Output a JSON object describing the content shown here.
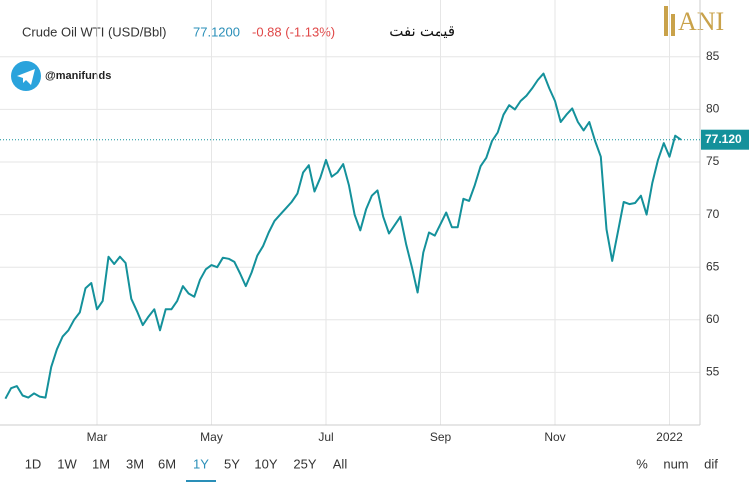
{
  "chart_data": {
    "type": "line",
    "title": "Crude Oil WTI (USD/Bbl)",
    "price": "77.1200",
    "change": "-0.88 (-1.13%)",
    "annotation": "قیمت نفت",
    "watermark": "@manifunds",
    "logo": "ANI",
    "categories": [
      null,
      null,
      null,
      null,
      null,
      null,
      null,
      null,
      null,
      null,
      null,
      null,
      null,
      null,
      null,
      null,
      "Mar",
      null,
      null,
      null,
      null,
      null,
      null,
      null,
      null,
      null,
      null,
      null,
      null,
      null,
      null,
      null,
      null,
      null,
      null,
      null,
      "May",
      null,
      null,
      null,
      null,
      null,
      null,
      null,
      null,
      null,
      null,
      null,
      null,
      null,
      null,
      null,
      null,
      null,
      null,
      null,
      "Jul",
      null,
      null,
      null,
      null,
      null,
      null,
      null,
      null,
      null,
      null,
      null,
      null,
      null,
      null,
      null,
      null,
      null,
      null,
      null,
      "Sep",
      null,
      null,
      null,
      null,
      null,
      null,
      null,
      null,
      null,
      null,
      null,
      null,
      null,
      null,
      null,
      null,
      null,
      null,
      null,
      "Nov",
      null,
      null,
      null,
      null,
      null,
      null,
      null,
      null,
      null,
      null,
      null,
      null,
      null,
      null,
      null,
      null,
      null,
      null,
      null,
      "2022",
      null,
      null
    ],
    "series": [
      {
        "name": "Crude Oil WTI (USD/Bbl)",
        "color": "#14919b",
        "values": [
          52.5,
          53.5,
          53.7,
          52.8,
          52.6,
          53,
          52.7,
          52.6,
          55.5,
          57.2,
          58.4,
          59,
          60,
          60.7,
          63,
          63.5,
          61,
          61.8,
          66,
          65.3,
          66,
          65.4,
          62,
          60.8,
          59.5,
          60.3,
          61,
          59,
          61,
          61,
          61.8,
          63.2,
          62.5,
          62.2,
          63.8,
          64.8,
          65.2,
          65,
          65.9,
          65.8,
          65.5,
          64.4,
          63.2,
          64.5,
          66.1,
          67,
          68.3,
          69.4,
          70,
          70.6,
          71.2,
          72,
          74,
          74.7,
          72.2,
          73.5,
          75.2,
          73.6,
          74,
          74.8,
          72.8,
          70,
          68.5,
          70.5,
          71.8,
          72.3,
          69.8,
          68.2,
          69,
          69.8,
          67.2,
          65,
          62.6,
          66.4,
          68.3,
          68,
          69.1,
          70.2,
          68.8,
          68.8,
          71.5,
          71.3,
          72.8,
          74.6,
          75.4,
          77,
          77.8,
          79.5,
          80.4,
          80,
          80.8,
          81.3,
          82,
          82.8,
          83.4,
          82,
          80.8,
          78.8,
          79.5,
          80.1,
          78.8,
          78,
          78.8,
          77,
          75.5,
          68.6,
          65.6,
          68.4,
          71.2,
          71,
          71.1,
          71.8,
          70,
          73,
          75.2,
          76.8,
          75.5,
          77.5,
          77.12
        ]
      }
    ],
    "price_line": {
      "value": 77.12,
      "label": "77.120"
    },
    "ylim": [
      50,
      90.4
    ],
    "yticks": [
      55,
      60,
      65,
      70,
      75,
      80,
      85
    ],
    "grid": true,
    "range_buttons": [
      "1D",
      "1W",
      "1M",
      "3M",
      "6M",
      "1Y",
      "5Y",
      "10Y",
      "25Y",
      "All"
    ],
    "active_range": "1Y",
    "view_buttons": [
      "%",
      "num",
      "dif"
    ]
  }
}
